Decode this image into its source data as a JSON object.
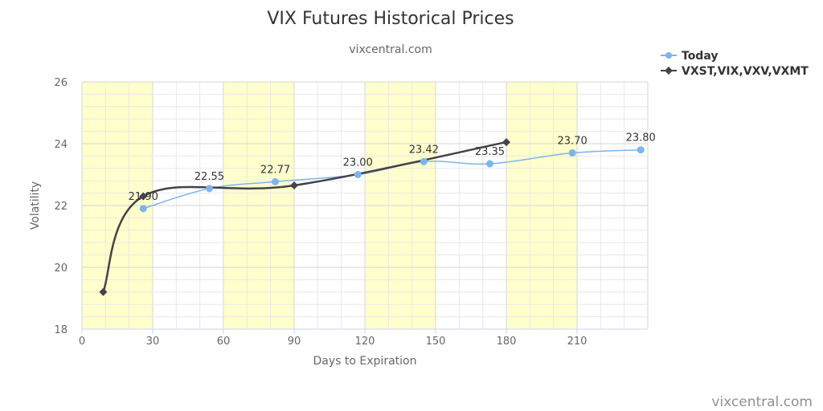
{
  "chart_data": {
    "type": "line",
    "title": "VIX Futures Historical Prices",
    "subtitle": "vixcentral.com",
    "xlabel": "Days to Expiration",
    "ylabel": "Volatility",
    "xlim": [
      0,
      240
    ],
    "ylim": [
      18,
      26
    ],
    "x_ticks": [
      0,
      30,
      60,
      90,
      120,
      150,
      180,
      210
    ],
    "y_ticks": [
      18,
      20,
      22,
      24,
      26
    ],
    "highlight_bands": [
      [
        0,
        30
      ],
      [
        60,
        90
      ],
      [
        120,
        150
      ],
      [
        180,
        210
      ]
    ],
    "grid": true,
    "legend_position": "top-right",
    "credit": "vixcentral.com",
    "series": [
      {
        "name": "Today",
        "color": "#7cb5ec",
        "marker": "circle",
        "x": [
          26,
          54,
          82,
          117,
          145,
          173,
          208,
          237
        ],
        "y": [
          21.9,
          22.55,
          22.77,
          23.0,
          23.42,
          23.35,
          23.7,
          23.8
        ],
        "labels": [
          "21.90",
          "22.55",
          "22.77",
          "23.00",
          "23.42",
          "23.35",
          "23.70",
          "23.80"
        ]
      },
      {
        "name": "VXST,VIX,VXV,VXMT",
        "color": "#434348",
        "marker": "diamond",
        "x": [
          9,
          26,
          90,
          180
        ],
        "y": [
          19.2,
          22.3,
          22.65,
          24.05
        ]
      }
    ]
  }
}
